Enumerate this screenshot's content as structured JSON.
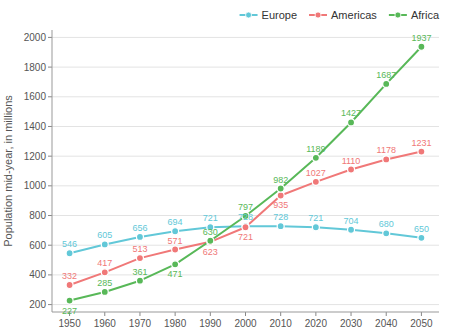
{
  "chart_data": {
    "type": "line",
    "x": [
      1950,
      1960,
      1970,
      1980,
      1990,
      2000,
      2010,
      2020,
      2030,
      2040,
      2050
    ],
    "series": [
      {
        "name": "Europe",
        "color": "#62C8D8",
        "values": [
          546,
          605,
          656,
          694,
          721,
          728,
          728,
          721,
          704,
          680,
          650
        ]
      },
      {
        "name": "Americas",
        "color": "#F07878",
        "values": [
          332,
          417,
          513,
          571,
          623,
          721,
          935,
          1027,
          1110,
          1178,
          1231
        ]
      },
      {
        "name": "Africa",
        "color": "#58B858",
        "values": [
          227,
          285,
          361,
          471,
          630,
          797,
          982,
          1189,
          1427,
          1687,
          1937
        ]
      }
    ],
    "ylabel": "Population mid-year, in millions",
    "xlim": [
      1945,
      2055
    ],
    "xticks": [
      1950,
      1960,
      1970,
      1980,
      1990,
      2000,
      2010,
      2020,
      2030,
      2040,
      2050
    ],
    "ylim": [
      150,
      2050
    ],
    "yticks": [
      200,
      400,
      600,
      800,
      1000,
      1200,
      1400,
      1600,
      1800,
      2000
    ],
    "grid": true,
    "legend": "upper right",
    "data_labels": true,
    "marker": "circle"
  }
}
